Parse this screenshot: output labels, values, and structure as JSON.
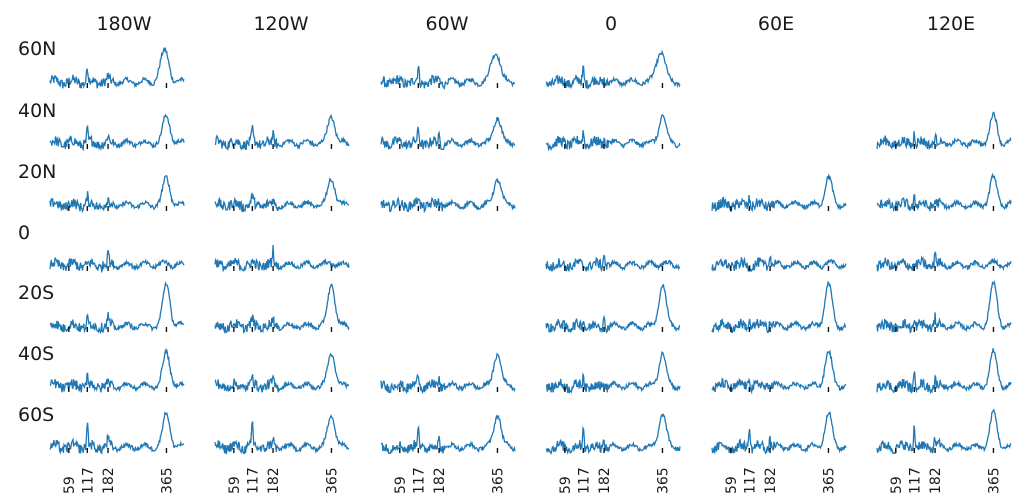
{
  "chart_data": {
    "type": "line",
    "title": "",
    "columns": [
      "180W",
      "120W",
      "60W",
      "0",
      "60E",
      "120E"
    ],
    "rows": [
      "60N",
      "40N",
      "20N",
      "0",
      "20S",
      "40S",
      "60S"
    ],
    "x_ticks": [
      59,
      117,
      182,
      365
    ],
    "xlim": [
      0,
      420
    ],
    "line_color": "#1f77b4",
    "panels_present": [
      [
        true,
        false,
        true,
        true,
        false,
        false
      ],
      [
        true,
        true,
        true,
        true,
        false,
        true
      ],
      [
        true,
        true,
        true,
        false,
        true,
        true
      ],
      [
        true,
        true,
        false,
        true,
        true,
        true
      ],
      [
        true,
        true,
        false,
        true,
        true,
        true
      ],
      [
        true,
        true,
        true,
        true,
        true,
        true
      ],
      [
        true,
        true,
        true,
        true,
        true,
        true
      ]
    ],
    "panel_peaks": [
      [
        [
          117,
          0.35
        ],
        [
          182,
          0.1
        ],
        [
          350,
          0.35
        ],
        [
          365,
          0.55
        ]
      ],
      [
        [
          117,
          0.3
        ],
        [
          182,
          0.15
        ],
        [
          365,
          0.65
        ]
      ],
      [
        [
          117,
          0.2
        ],
        [
          182,
          0.1
        ],
        [
          365,
          0.65
        ]
      ],
      [
        [
          182,
          0.35
        ],
        [
          365,
          0.05
        ]
      ],
      [
        [
          117,
          0.15
        ],
        [
          182,
          0.2
        ],
        [
          365,
          1.0
        ]
      ],
      [
        [
          117,
          0.3
        ],
        [
          182,
          0.15
        ],
        [
          365,
          0.8
        ]
      ],
      [
        [
          117,
          0.55
        ],
        [
          182,
          0.2
        ],
        [
          365,
          0.8
        ]
      ]
    ]
  }
}
